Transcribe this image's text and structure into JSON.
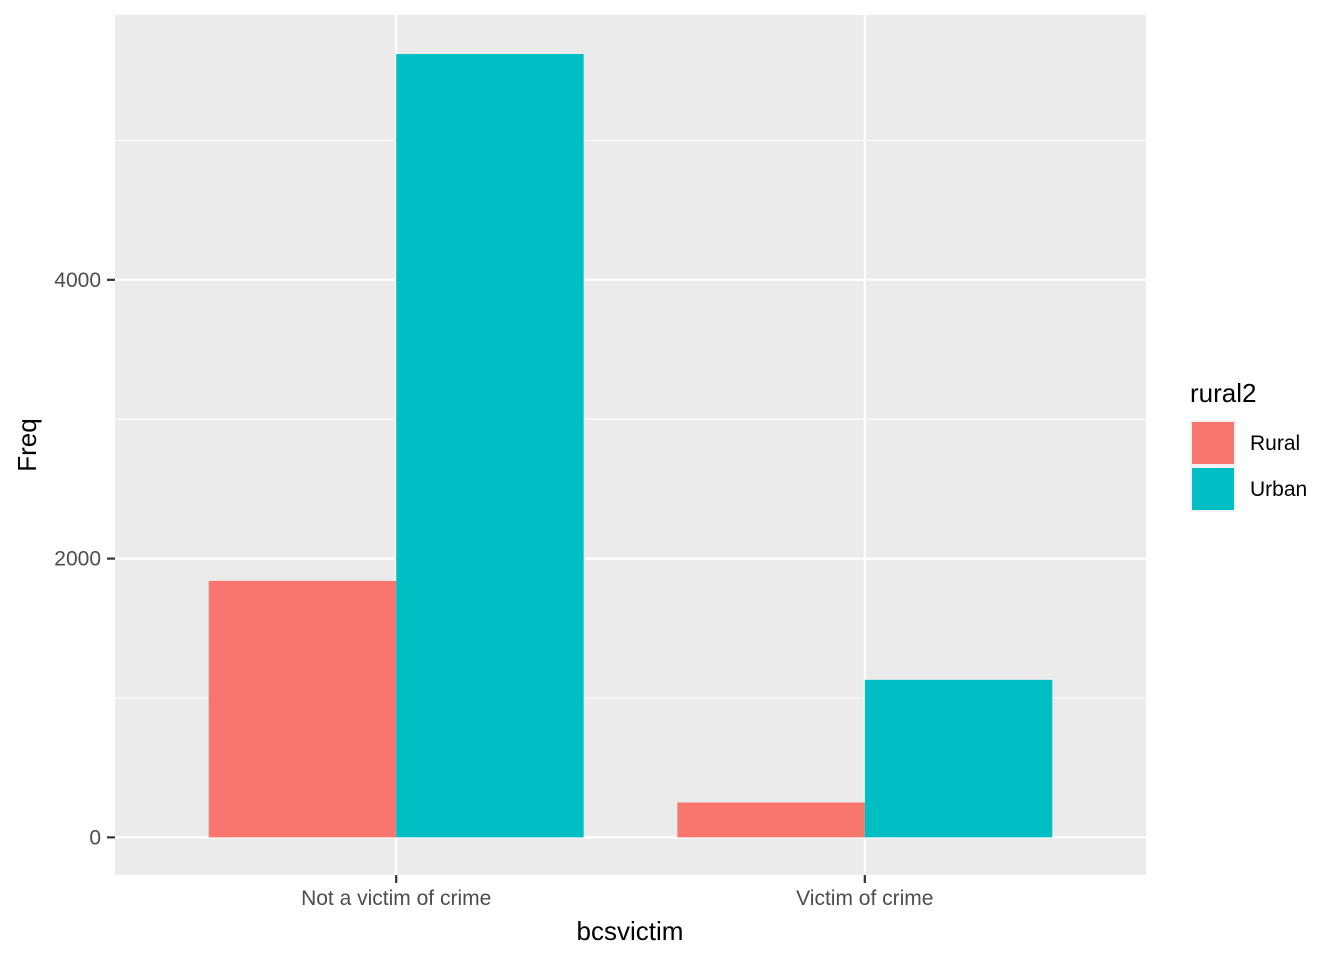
{
  "chart_data": {
    "type": "bar",
    "title": "",
    "xlabel": "bcsvictim",
    "ylabel": "Freq",
    "categories": [
      "Not a victim of crime",
      "Victim of crime"
    ],
    "series": [
      {
        "name": "Rural",
        "color": "#F8766D",
        "values": [
          1840,
          250
        ]
      },
      {
        "name": "Urban",
        "color": "#00BFC4",
        "values": [
          5620,
          1130
        ]
      }
    ],
    "ylim": [
      -270,
      5900
    ],
    "yticks": [
      0,
      2000,
      4000
    ],
    "y_minor_gridlines": [
      1000,
      3000,
      5000
    ],
    "grid": true,
    "legend": {
      "title": "rural2",
      "position": "right"
    },
    "panel_background": "#EBEBEB",
    "gridline_color": "#FFFFFF"
  }
}
